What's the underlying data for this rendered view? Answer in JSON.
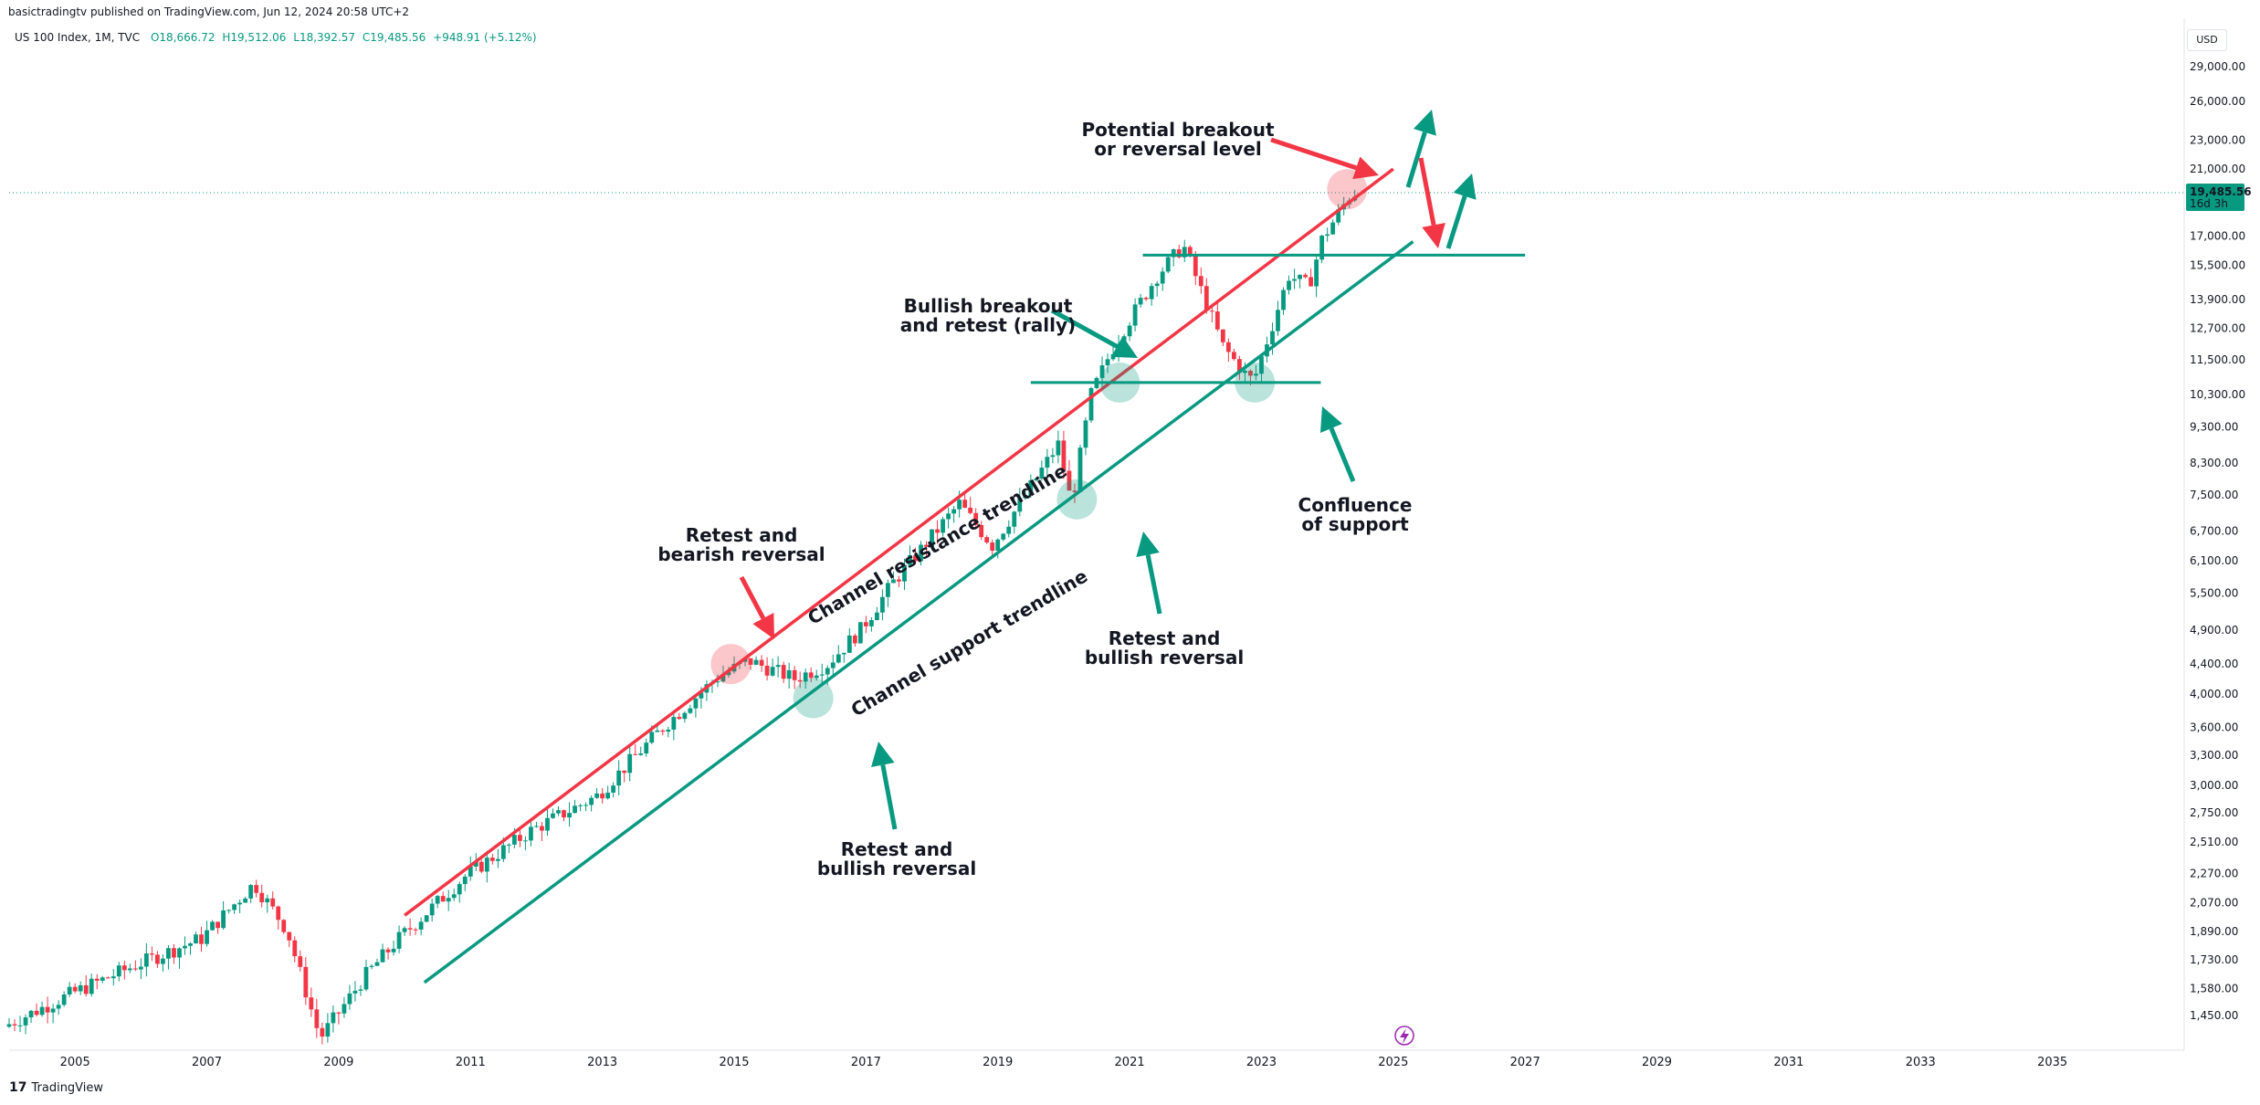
{
  "header": {
    "published": "basictradingtv published on TradingView.com, Jun 12, 2024 20:58 UTC+2",
    "symbol": "US 100 Index, 1M, TVC",
    "open": "O18,666.72",
    "high": "H19,512.06",
    "low": "L18,392.57",
    "close": "C19,485.56",
    "change": "+948.91 (+5.12%)",
    "currency": "USD"
  },
  "footer": {
    "brand": "TradingView",
    "mark": "17"
  },
  "colors": {
    "up": "#089981",
    "down": "#f23645",
    "channel_red": "#f23645",
    "channel_green": "#089981"
  },
  "chart_data": {
    "type": "candlestick",
    "title": "US 100 Index, 1M, TVC",
    "yscale": "log",
    "ylim": [
      1300,
      31000
    ],
    "xlim": [
      2004.0,
      2037.0
    ],
    "y_ticks": [
      "29,000.00",
      "26,000.00",
      "23,000.00",
      "21,000.00",
      "17,000.00",
      "15,500.00",
      "13,900.00",
      "12,700.00",
      "11,500.00",
      "10,300.00",
      "9,300.00",
      "8,300.00",
      "7,500.00",
      "6,700.00",
      "6,100.00",
      "5,500.00",
      "4,900.00",
      "4,400.00",
      "4,000.00",
      "3,600.00",
      "3,300.00",
      "3,000.00",
      "2,750.00",
      "2,510.00",
      "2,270.00",
      "2,070.00",
      "1,890.00",
      "1,730.00",
      "1,580.00",
      "1,450.00"
    ],
    "x_ticks": [
      "2005",
      "2007",
      "2009",
      "2011",
      "2013",
      "2015",
      "2017",
      "2019",
      "2021",
      "2023",
      "2025",
      "2027",
      "2029",
      "2031",
      "2033",
      "2035"
    ],
    "price_points": [
      [
        2004.0,
        1400
      ],
      [
        2005.0,
        1550
      ],
      [
        2006.0,
        1700
      ],
      [
        2007.0,
        1850
      ],
      [
        2007.8,
        2200
      ],
      [
        2008.3,
        1900
      ],
      [
        2008.8,
        1350
      ],
      [
        2009.5,
        1650
      ],
      [
        2010.0,
        1850
      ],
      [
        2011.0,
        2250
      ],
      [
        2012.0,
        2600
      ],
      [
        2013.0,
        2900
      ],
      [
        2014.0,
        3600
      ],
      [
        2014.8,
        4200
      ],
      [
        2015.3,
        4450
      ],
      [
        2016.0,
        4200
      ],
      [
        2016.5,
        4400
      ],
      [
        2017.0,
        4900
      ],
      [
        2017.5,
        5700
      ],
      [
        2018.5,
        7300
      ],
      [
        2019.0,
        6400
      ],
      [
        2019.5,
        7500
      ],
      [
        2020.0,
        8800
      ],
      [
        2020.2,
        7300
      ],
      [
        2020.5,
        10300
      ],
      [
        2020.8,
        11800
      ],
      [
        2021.0,
        12700
      ],
      [
        2021.5,
        15000
      ],
      [
        2021.9,
        16500
      ],
      [
        2022.5,
        12000
      ],
      [
        2022.9,
        10800
      ],
      [
        2023.0,
        11000
      ],
      [
        2023.5,
        15000
      ],
      [
        2023.8,
        14500
      ],
      [
        2024.0,
        16800
      ],
      [
        2024.45,
        19485.56
      ]
    ],
    "last_price": "19,485.56",
    "last_price_timer": "16d 3h",
    "annotations": [
      {
        "text": [
          "Potential breakout",
          "or reversal level"
        ]
      },
      {
        "text": [
          "Bullish breakout",
          "and retest (rally)"
        ]
      },
      {
        "text": [
          "Retest and",
          "bearish reversal"
        ]
      },
      {
        "text": [
          "Retest and",
          "bullish reversal"
        ]
      },
      {
        "text": [
          "Retest and",
          "bullish reversal"
        ]
      },
      {
        "text": [
          "Confluence",
          "of support"
        ]
      },
      {
        "text": [
          "Channel resistance trendline"
        ]
      },
      {
        "text": [
          "Channel support trendline"
        ]
      }
    ],
    "trendlines": {
      "resistance": [
        [
          2010.0,
          1990
        ],
        [
          2025.0,
          21000
        ]
      ],
      "support": [
        [
          2010.3,
          1610
        ],
        [
          2025.3,
          16700
        ]
      ],
      "horizontal_resistance": {
        "from": 2021.2,
        "to": 2027.0,
        "price": 16000
      },
      "horizontal_support": {
        "from": 2019.5,
        "to": 2023.9,
        "price": 10700
      }
    }
  }
}
